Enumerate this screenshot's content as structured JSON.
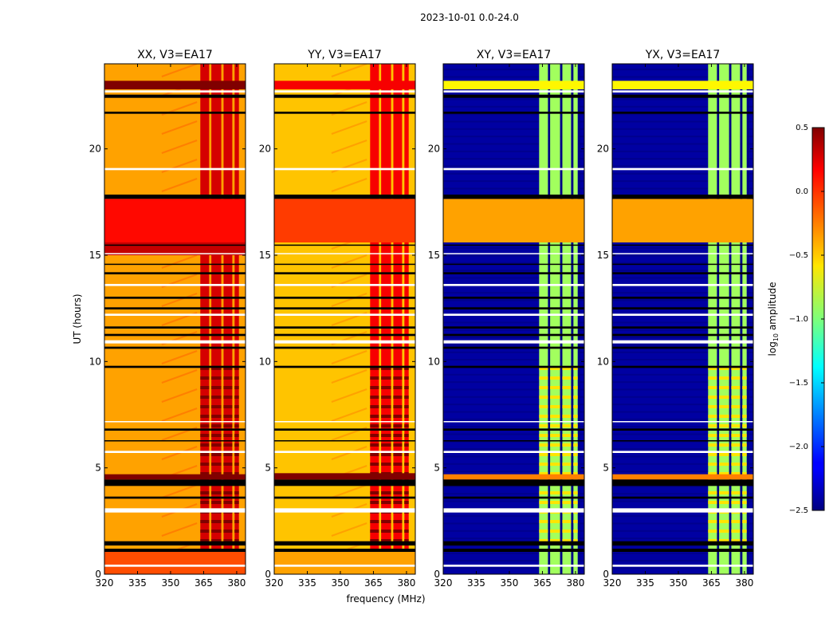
{
  "figure_title": "2023-10-01 0.0-24.0",
  "chart_data": {
    "type": "heatmap",
    "title": "2023-10-01 0.0-24.0",
    "ylabel": "UT (hours)",
    "xlabel": "frequency (MHz)",
    "colorbar": {
      "label": "log10 amplitude",
      "label_base": "log",
      "label_sub": "10",
      "label_rest": " amplitude",
      "range": [
        -2.5,
        0.5
      ],
      "ticks": [
        0.5,
        0.0,
        -0.5,
        -1.0,
        -1.5,
        -2.0,
        -2.5
      ],
      "tick_labels": [
        "0.5",
        "0.0",
        "−0.5",
        "−1.0",
        "−1.5",
        "−2.0",
        "−2.5"
      ],
      "colormap": "jet"
    },
    "xlim": [
      320,
      384
    ],
    "ylim": [
      0,
      24
    ],
    "x_ticks": [
      320,
      335,
      350,
      365,
      380
    ],
    "x_tick_labels": [
      "320",
      "335",
      "350",
      "365",
      "380"
    ],
    "y_ticks": [
      0,
      5,
      10,
      15,
      20
    ],
    "y_tick_labels": [
      "0",
      "5",
      "10",
      "15",
      "20"
    ],
    "flagged_bands_hours": [
      [
        0.35,
        0.45
      ],
      [
        1.05,
        1.2
      ],
      [
        1.35,
        1.55
      ],
      [
        2.9,
        3.1
      ],
      [
        3.55,
        3.65
      ],
      [
        4.15,
        4.45
      ],
      [
        5.7,
        5.8
      ],
      [
        6.25,
        6.3
      ],
      [
        6.75,
        6.85
      ],
      [
        7.15,
        7.2
      ],
      [
        9.7,
        9.8
      ],
      [
        10.6,
        10.7
      ],
      [
        10.85,
        11.0
      ],
      [
        11.2,
        11.3
      ],
      [
        11.55,
        11.65
      ],
      [
        12.15,
        12.25
      ],
      [
        12.45,
        12.55
      ],
      [
        12.95,
        13.05
      ],
      [
        13.55,
        13.65
      ],
      [
        14.1,
        14.2
      ],
      [
        14.55,
        14.6
      ],
      [
        15.05,
        15.1
      ],
      [
        15.45,
        15.5
      ],
      [
        17.65,
        17.85
      ],
      [
        19.0,
        19.1
      ],
      [
        21.65,
        21.75
      ],
      [
        22.4,
        22.55
      ],
      [
        22.65,
        22.75
      ]
    ],
    "rfi_channels_mhz": [
      [
        363.5,
        367.5
      ],
      [
        368.5,
        373
      ],
      [
        374,
        378
      ],
      [
        379,
        381
      ]
    ],
    "panels": [
      {
        "name": "XX",
        "title": "XX, V3=EA17",
        "kind": "parallel",
        "baseline": -0.35,
        "rfi_level": 0.25,
        "segments": [
          {
            "from": 0,
            "to": 1.05,
            "level": -0.1
          },
          {
            "from": 4.45,
            "to": 4.7,
            "level": 0.5
          },
          {
            "from": 15.0,
            "to": 15.6,
            "level": 0.3
          },
          {
            "from": 15.6,
            "to": 17.65,
            "level": 0.1
          },
          {
            "from": 22.8,
            "to": 23.2,
            "level": 0.5
          }
        ]
      },
      {
        "name": "YY",
        "title": "YY, V3=EA17",
        "kind": "parallel",
        "baseline": -0.45,
        "rfi_level": 0.15,
        "segments": [
          {
            "from": 0,
            "to": 1.05,
            "level": -0.35
          },
          {
            "from": 4.45,
            "to": 4.75,
            "level": 0.5
          },
          {
            "from": 15.6,
            "to": 17.65,
            "level": -0.05
          },
          {
            "from": 22.8,
            "to": 23.2,
            "level": 0.15
          }
        ]
      },
      {
        "name": "XY",
        "title": "XY, V3=EA17",
        "kind": "cross",
        "baseline": -2.4,
        "rfi_level": -0.9,
        "segments": [
          {
            "from": 4.45,
            "to": 4.7,
            "level": -0.25
          },
          {
            "from": 15.6,
            "to": 17.65,
            "level": -0.35
          },
          {
            "from": 22.8,
            "to": 23.2,
            "level": -0.6
          }
        ]
      },
      {
        "name": "YX",
        "title": "YX, V3=EA17",
        "kind": "cross",
        "baseline": -2.4,
        "rfi_level": -0.9,
        "segments": [
          {
            "from": 4.45,
            "to": 4.7,
            "level": -0.25
          },
          {
            "from": 15.6,
            "to": 17.65,
            "level": -0.35
          },
          {
            "from": 22.8,
            "to": 23.2,
            "level": -0.6
          }
        ]
      }
    ]
  }
}
